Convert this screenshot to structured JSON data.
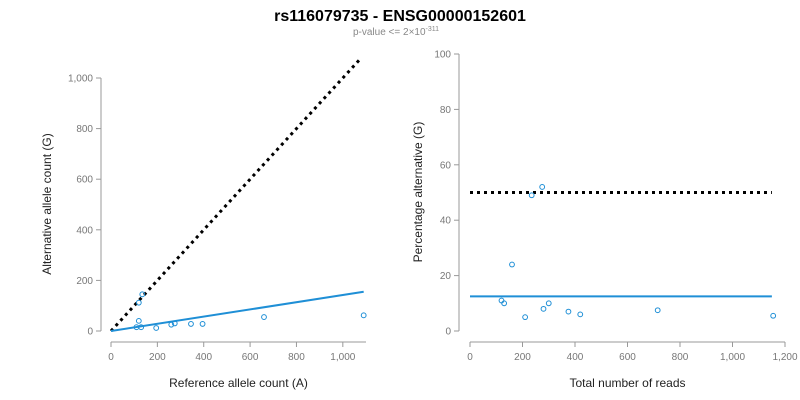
{
  "title": "rs116079735 - ENSG00000152601",
  "subtitle": {
    "prefix": "p-value <= 2",
    "times": "×",
    "base": "10",
    "exponent": "-311"
  },
  "colors": {
    "points": "#1f8fd6",
    "fit_line": "#1f8fd6",
    "reference_line": "#000000"
  },
  "chart_data": [
    {
      "type": "scatter",
      "xlabel": "Reference allele count (A)",
      "ylabel": "Alternative allele count (G)",
      "xlim": [
        0,
        1100
      ],
      "ylim": [
        0,
        1000
      ],
      "x_ticks": [
        0,
        200,
        400,
        600,
        800,
        1000
      ],
      "x_tick_labels": [
        "0",
        "200",
        "400",
        "600",
        "800",
        "1,000"
      ],
      "y_ticks": [
        0,
        200,
        400,
        600,
        800,
        1000
      ],
      "y_tick_labels": [
        "0",
        "200",
        "400",
        "600",
        "800",
        "1,000"
      ],
      "grid": false,
      "points": [
        {
          "x": 110,
          "y": 15
        },
        {
          "x": 120,
          "y": 112
        },
        {
          "x": 120,
          "y": 40
        },
        {
          "x": 130,
          "y": 15
        },
        {
          "x": 135,
          "y": 145
        },
        {
          "x": 195,
          "y": 12
        },
        {
          "x": 260,
          "y": 25
        },
        {
          "x": 275,
          "y": 30
        },
        {
          "x": 345,
          "y": 28
        },
        {
          "x": 395,
          "y": 28
        },
        {
          "x": 660,
          "y": 55
        },
        {
          "x": 1090,
          "y": 62
        }
      ],
      "lines": [
        {
          "style": "dotted",
          "color": "#000000",
          "x": [
            0,
            1080
          ],
          "y": [
            0,
            1080
          ]
        },
        {
          "style": "solid",
          "color": "#1f8fd6",
          "x": [
            0,
            1090
          ],
          "y": [
            0,
            155
          ]
        }
      ]
    },
    {
      "type": "scatter",
      "xlabel": "Total number of reads",
      "ylabel": "Percentage alternative (G)",
      "xlim": [
        0,
        1200
      ],
      "ylim": [
        0,
        100
      ],
      "x_ticks": [
        0,
        200,
        400,
        600,
        800,
        1000,
        1200
      ],
      "x_tick_labels": [
        "0",
        "200",
        "400",
        "600",
        "800",
        "1,000",
        "1,200"
      ],
      "y_ticks": [
        0,
        20,
        40,
        60,
        80,
        100
      ],
      "y_tick_labels": [
        "0",
        "20",
        "40",
        "60",
        "80",
        "100"
      ],
      "grid": false,
      "points": [
        {
          "x": 120,
          "y": 11
        },
        {
          "x": 130,
          "y": 10
        },
        {
          "x": 160,
          "y": 24
        },
        {
          "x": 210,
          "y": 5
        },
        {
          "x": 235,
          "y": 49
        },
        {
          "x": 275,
          "y": 52
        },
        {
          "x": 280,
          "y": 8
        },
        {
          "x": 300,
          "y": 10
        },
        {
          "x": 375,
          "y": 7
        },
        {
          "x": 420,
          "y": 6
        },
        {
          "x": 715,
          "y": 7.5
        },
        {
          "x": 1155,
          "y": 5.5
        }
      ],
      "lines": [
        {
          "style": "dotted",
          "color": "#000000",
          "x": [
            0,
            1150
          ],
          "y": [
            50,
            50
          ]
        },
        {
          "style": "solid",
          "color": "#1f8fd6",
          "x": [
            0,
            1150
          ],
          "y": [
            12.5,
            12.5
          ]
        }
      ]
    }
  ]
}
